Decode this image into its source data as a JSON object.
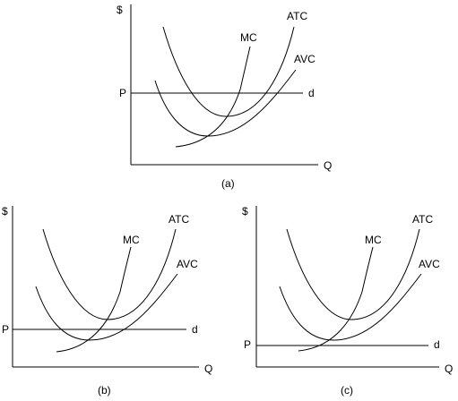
{
  "panels": [
    {
      "id": "a",
      "caption": "(a)",
      "y_axis_label": "$",
      "x_axis_label": "Q",
      "price_label": "P",
      "demand_label": "d",
      "curves": {
        "mc": "MC",
        "atc": "ATC",
        "avc": "AVC"
      }
    },
    {
      "id": "b",
      "caption": "(b)",
      "y_axis_label": "$",
      "x_axis_label": "Q",
      "price_label": "P",
      "demand_label": "d",
      "curves": {
        "mc": "MC",
        "atc": "ATC",
        "avc": "AVC"
      }
    },
    {
      "id": "c",
      "caption": "(c)",
      "y_axis_label": "$",
      "x_axis_label": "Q",
      "price_label": "P",
      "demand_label": "d",
      "curves": {
        "mc": "MC",
        "atc": "ATC",
        "avc": "AVC"
      }
    }
  ]
}
